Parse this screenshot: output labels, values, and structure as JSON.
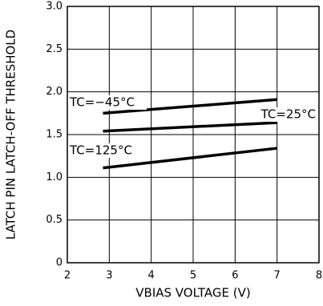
{
  "chart_data": {
    "type": "line",
    "xlabel": "VBIAS VOLTAGE (V)",
    "ylabel": "LATCH PIN LATCH-OFF THRESHOLD",
    "xlim": [
      2,
      8
    ],
    "xticks": [
      2,
      3,
      4,
      5,
      6,
      7,
      8
    ],
    "ylim": [
      0,
      3
    ],
    "yticks": [
      0,
      0.5,
      {
        "value": 1,
        "label": "1.0"
      },
      1.5,
      {
        "value": 2,
        "label": "2.0"
      },
      2.5,
      {
        "value": 3,
        "label": "3.0"
      }
    ],
    "grid": true,
    "series": [
      {
        "name": "TC=−45°C",
        "color": "#000000",
        "x": [
          2.85,
          7
        ],
        "values": [
          1.75,
          1.91
        ]
      },
      {
        "name": "TC=25°C",
        "color": "#000000",
        "x": [
          2.85,
          7
        ],
        "values": [
          1.54,
          1.64
        ]
      },
      {
        "name": "TC=125°C",
        "color": "#000000",
        "x": [
          2.85,
          7
        ],
        "values": [
          1.11,
          1.34
        ]
      }
    ]
  }
}
